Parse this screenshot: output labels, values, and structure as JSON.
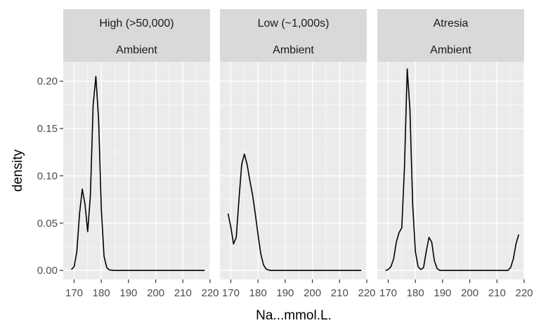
{
  "chart_data": {
    "type": "line",
    "xlabel": "Na...mmol.L.",
    "ylabel": "density",
    "xlim": [
      166,
      220
    ],
    "ylim": [
      -0.0095,
      0.2205
    ],
    "x_ticks": [
      170,
      180,
      190,
      200,
      210,
      220
    ],
    "x_tick_labels": [
      "170",
      "180",
      "190",
      "200",
      "210",
      "220"
    ],
    "y_ticks": [
      0.0,
      0.05,
      0.1,
      0.15,
      0.2
    ],
    "y_tick_labels": [
      "0.00",
      "0.05",
      "0.10",
      "0.15",
      "0.20"
    ],
    "grid": true,
    "colors": {
      "panel_bg": "#ebebeb",
      "strip_bg": "#d9d9d9",
      "grid": "#ffffff",
      "line": "#000000"
    },
    "panels": [
      {
        "strip": [
          "High (>50,000)",
          "Ambient"
        ],
        "series": [
          {
            "x": [
              169,
              170,
              171,
              172,
              173,
              174,
              175,
              176,
              177,
              178,
              179,
              180,
              181,
              182,
              183,
              185,
              190,
              200,
              210,
              218
            ],
            "y": [
              0.001,
              0.004,
              0.02,
              0.06,
              0.086,
              0.07,
              0.041,
              0.08,
              0.175,
              0.205,
              0.16,
              0.065,
              0.015,
              0.003,
              0.0005,
              0.0,
              0.0,
              0.0,
              0.0,
              0.0
            ]
          }
        ]
      },
      {
        "strip": [
          "Low (~1,000s)",
          "Ambient"
        ],
        "series": [
          {
            "x": [
              169,
              170,
              171,
              172,
              173,
              174,
              175,
              176,
              177,
              178,
              179,
              180,
              181,
              182,
              183,
              184,
              185,
              186,
              190,
              200,
              210,
              218
            ],
            "y": [
              0.06,
              0.046,
              0.028,
              0.035,
              0.075,
              0.112,
              0.123,
              0.112,
              0.095,
              0.08,
              0.06,
              0.038,
              0.018,
              0.006,
              0.0015,
              0.0003,
              0.0,
              0.0,
              0.0,
              0.0,
              0.0,
              0.0
            ]
          }
        ]
      },
      {
        "strip": [
          "Atresia",
          "Ambient"
        ],
        "series": [
          {
            "x": [
              169,
              170,
              171,
              172,
              173,
              174,
              175,
              176,
              177,
              178,
              179,
              180,
              181,
              182,
              183,
              184,
              185,
              186,
              187,
              188,
              189,
              190,
              195,
              200,
              205,
              210,
              214,
              215,
              216,
              217,
              218
            ],
            "y": [
              0.0,
              0.001,
              0.004,
              0.012,
              0.03,
              0.04,
              0.045,
              0.11,
              0.213,
              0.17,
              0.07,
              0.02,
              0.004,
              0.001,
              0.003,
              0.02,
              0.035,
              0.03,
              0.01,
              0.002,
              0.0,
              0.0,
              0.0,
              0.0,
              0.0,
              0.0,
              0.0,
              0.003,
              0.012,
              0.028,
              0.038
            ]
          }
        ]
      }
    ]
  }
}
